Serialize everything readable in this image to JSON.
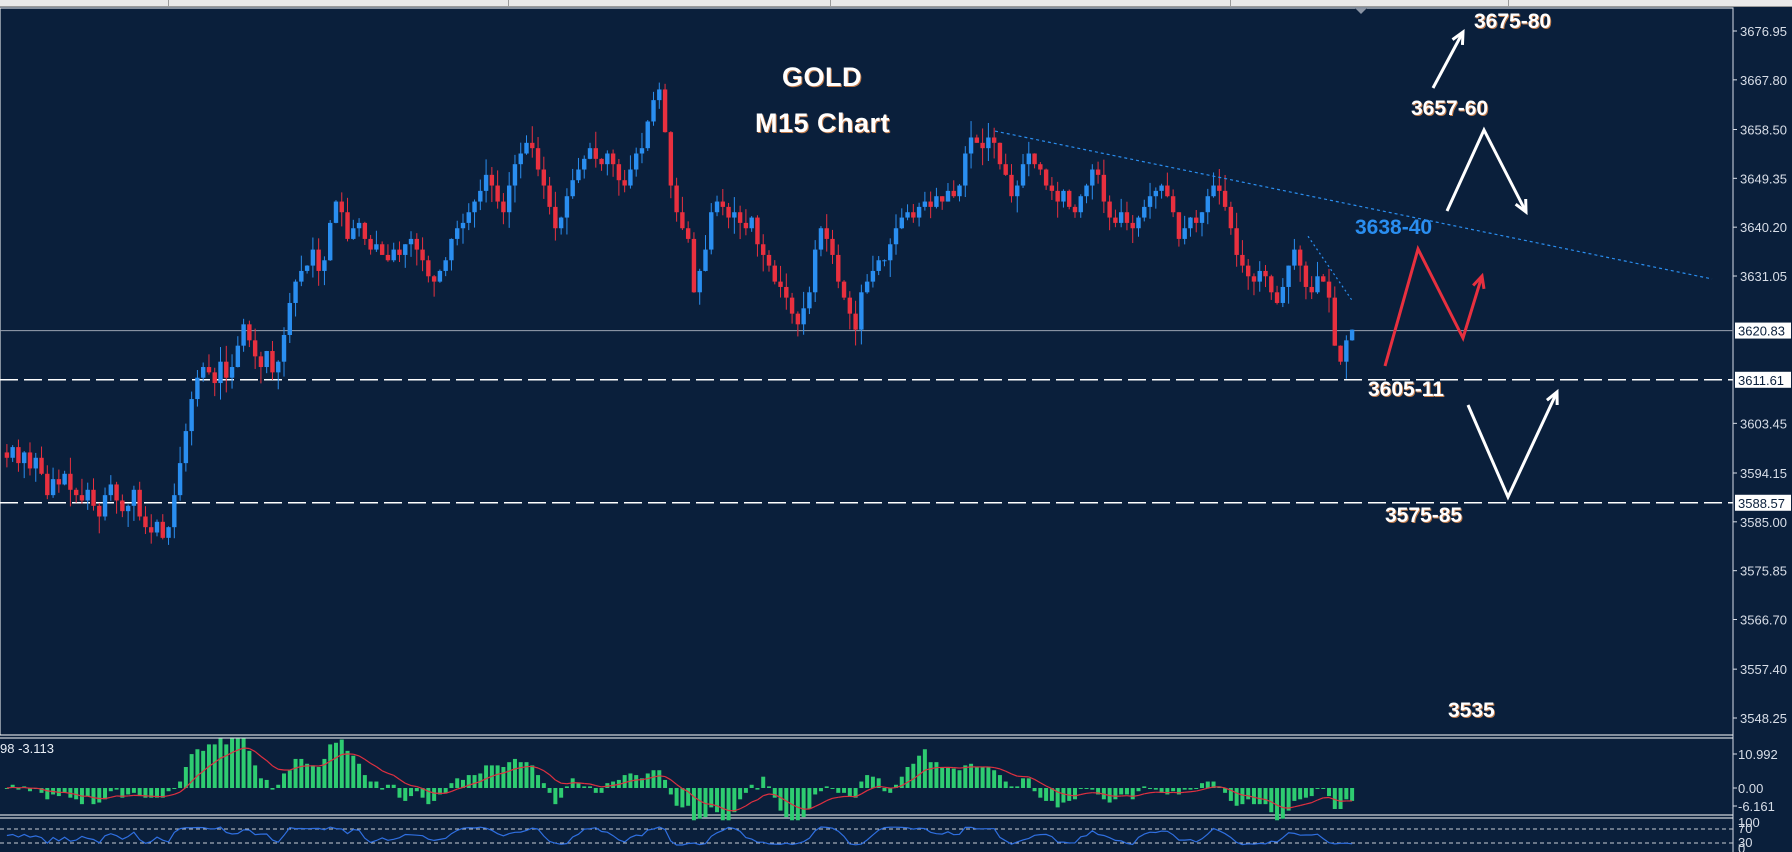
{
  "chart_data": {
    "type": "candlestick",
    "instrument": "GOLD",
    "timeframe": "M15",
    "title": "GOLD",
    "subtitle": "M15 Chart",
    "ylim": [
      3543,
      3681
    ],
    "y_ticks": [
      "3676.95",
      "3667.80",
      "3658.50",
      "3649.35",
      "3640.20",
      "3631.05",
      "3603.45",
      "3594.15",
      "3585.00",
      "3575.85",
      "3566.70",
      "3557.40",
      "3548.25"
    ],
    "current_price": "3620.83",
    "horizontal_levels": [
      {
        "value": "3611.61",
        "style": "dashed"
      },
      {
        "value": "3588.57",
        "style": "dashed"
      }
    ],
    "price_path_closes": [
      3597,
      3599,
      3596,
      3598,
      3595,
      3597,
      3594,
      3590,
      3593,
      3592,
      3594,
      3591,
      3590,
      3589,
      3591,
      3588,
      3586,
      3590,
      3592,
      3589,
      3587,
      3588,
      3591,
      3586,
      3584,
      3583,
      3585,
      3582,
      3584,
      3590,
      3596,
      3602,
      3608,
      3612,
      3614,
      3613,
      3611,
      3615,
      3612,
      3614,
      3618,
      3622,
      3619,
      3616,
      3614,
      3617,
      3613,
      3615,
      3620,
      3626,
      3630,
      3632,
      3633,
      3636,
      3632,
      3634,
      3641,
      3645,
      3643,
      3638,
      3640,
      3641,
      3638,
      3636,
      3637,
      3635,
      3634,
      3636,
      3635,
      3637,
      3638,
      3636,
      3634,
      3631,
      3630,
      3632,
      3634,
      3638,
      3640,
      3641,
      3643,
      3645,
      3647,
      3650,
      3648,
      3645,
      3643,
      3648,
      3652,
      3654,
      3656,
      3655,
      3651,
      3648,
      3644,
      3640,
      3642,
      3646,
      3649,
      3651,
      3653,
      3655,
      3653,
      3652,
      3654,
      3652,
      3649,
      3648,
      3651,
      3654,
      3655,
      3660,
      3664,
      3666,
      3658,
      3648,
      3643,
      3640,
      3638,
      3628,
      3632,
      3636,
      3643,
      3645,
      3644,
      3642,
      3643,
      3641,
      3640,
      3642,
      3637,
      3635,
      3633,
      3630,
      3629,
      3627,
      3624,
      3622,
      3625,
      3628,
      3636,
      3640,
      3638,
      3635,
      3630,
      3627,
      3624,
      3621,
      3628,
      3630,
      3632,
      3634,
      3634,
      3637,
      3640,
      3642,
      3643,
      3642,
      3644,
      3645,
      3644,
      3646,
      3645,
      3647,
      3646,
      3648,
      3654,
      3657,
      3656,
      3655,
      3657,
      3656,
      3652,
      3650,
      3646,
      3648,
      3652,
      3654,
      3652,
      3651,
      3648,
      3647,
      3645,
      3647,
      3644,
      3643,
      3646,
      3648,
      3651,
      3650,
      3645,
      3642,
      3641,
      3643,
      3641,
      3640,
      3642,
      3644,
      3646,
      3647,
      3648,
      3646,
      3643,
      3638,
      3640,
      3642,
      3641,
      3643,
      3646,
      3648,
      3647,
      3644,
      3640,
      3635,
      3633,
      3631,
      3630,
      3632,
      3631,
      3628,
      3626,
      3629,
      3633,
      3636,
      3633,
      3629,
      3628,
      3631,
      3630,
      3627,
      3618,
      3615,
      3619,
      3621
    ],
    "annotations": [
      {
        "text": "3675-80",
        "color": "#ffffff"
      },
      {
        "text": "3657-60",
        "color": "#ffffff"
      },
      {
        "text": "3638-40",
        "color": "#2a8ef0"
      },
      {
        "text": "3605-11",
        "color": "#ffffff"
      },
      {
        "text": "3575-85",
        "color": "#ffffff"
      },
      {
        "text": "3535",
        "color": "#ffffff"
      }
    ],
    "trendline": {
      "style": "dotted",
      "color": "#2a8ef0",
      "from": [
        3658,
        "bar 165"
      ],
      "to": [
        3631,
        "right edge"
      ]
    },
    "indicators": {
      "macd": {
        "label": "98 -3.113",
        "ticks": [
          "10.992",
          "0.00",
          "-6.161"
        ],
        "histogram_color": "#2ecc71",
        "signal_color": "#e03040"
      },
      "rsi": {
        "ticks": [
          "100",
          "70",
          "30",
          "0"
        ],
        "line_color": "#2f6fe0"
      }
    },
    "colors": {
      "bull": "#2a8ef0",
      "bear": "#e8303f",
      "background": "#0a1f3b"
    }
  },
  "labels": {
    "title": "GOLD",
    "subtitle": "M15 Chart",
    "lvl_3675": "3675-80",
    "lvl_3657": "3657-60",
    "lvl_3638": "3638-40",
    "lvl_3605": "3605-11",
    "lvl_3575": "3575-85",
    "lvl_3535": "3535",
    "macd_label": "98 -3.113"
  }
}
